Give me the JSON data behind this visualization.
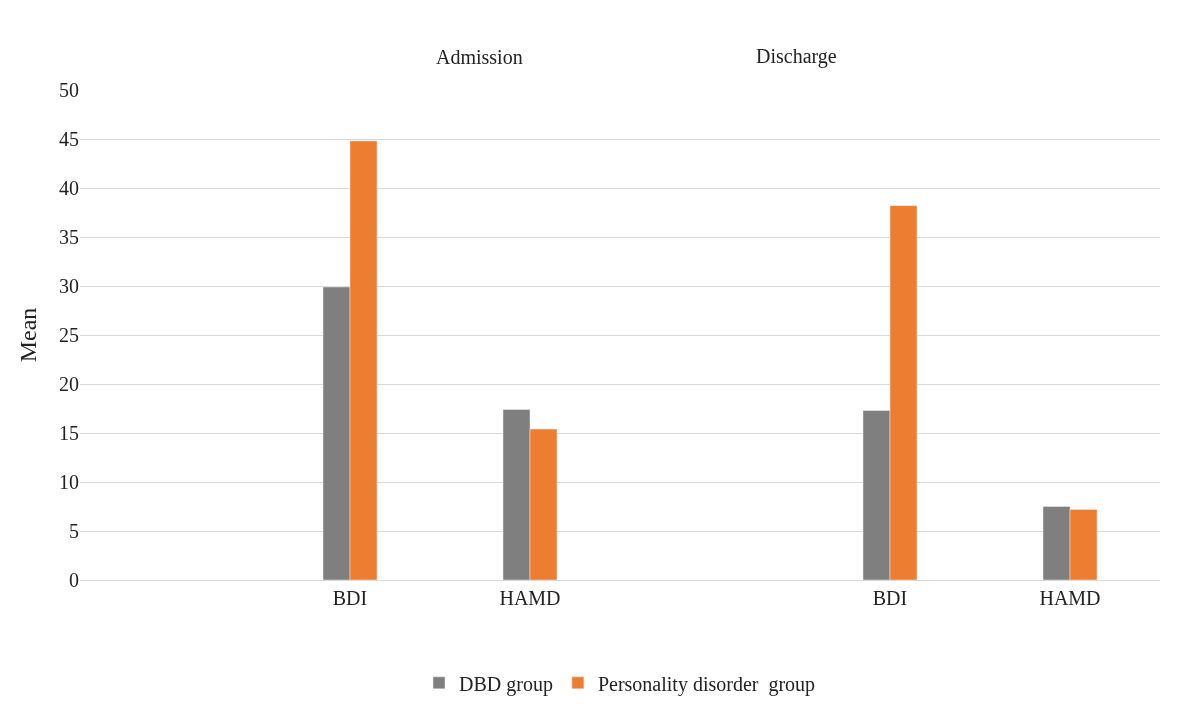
{
  "chart_data": {
    "type": "bar",
    "categories": [
      null,
      "BDI",
      "HAMD",
      null,
      "BDI",
      "HAMD"
    ],
    "series": [
      {
        "name": "DBD group",
        "color": "#7f7f7f",
        "values": [
          null,
          29.9,
          17.4,
          null,
          17.3,
          7.5
        ]
      },
      {
        "name": "Personality disorder  group",
        "color": "#ed7d31",
        "values": [
          null,
          44.8,
          15.4,
          null,
          38.2,
          7.2
        ]
      }
    ],
    "ylabel": "Mean",
    "ylim": [
      0,
      50
    ],
    "yticks": [
      0,
      5,
      10,
      15,
      20,
      25,
      30,
      35,
      40,
      45,
      50
    ],
    "annotations": [
      "Admission",
      "Discharge"
    ],
    "grid": "y",
    "legend": "bottom"
  }
}
